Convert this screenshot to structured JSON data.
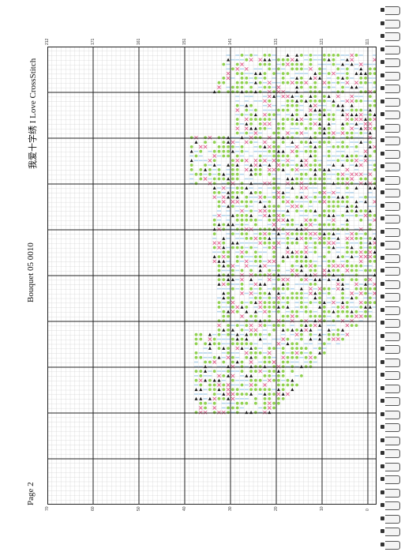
{
  "page": {
    "page_label": "Page 2",
    "pattern_title": "Bouquet 05 0010",
    "brand": "我爱十字绣 I Love CrossStitch"
  },
  "chart_ticks": {
    "bottom": [
      "70",
      "60",
      "50",
      "40",
      "30",
      "20",
      "10",
      "0"
    ],
    "top": [
      "212",
      "171",
      "161",
      "151",
      "141",
      "131",
      "121",
      "111"
    ]
  },
  "colors": {
    "paper": "#ffffff",
    "grid_fine": "#c9c9c9",
    "grid_major": "#222222",
    "thread_green": "#8fd14f",
    "thread_blue": "#b8d8ef",
    "thread_pink": "#e05a8a",
    "thread_dark": "#111111",
    "binding_ring": "#555555"
  }
}
